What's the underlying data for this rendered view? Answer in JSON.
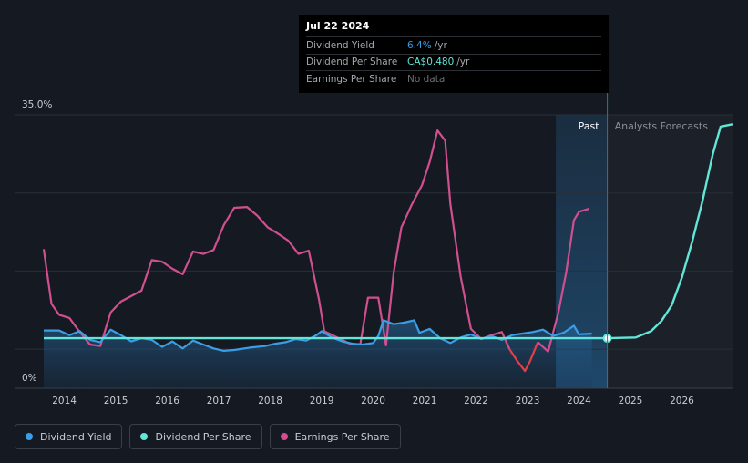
{
  "colors": {
    "dividend_yield": "#3a9ee6",
    "dividend_per_share": "#62e6d8",
    "earnings_per_share": "#d0508f",
    "earnings_negative": "#e0404a",
    "background": "#151a22"
  },
  "tooltip": {
    "date": "Jul 22 2024",
    "rows": [
      {
        "label": "Dividend Yield",
        "value": "6.4%",
        "unit": "/yr"
      },
      {
        "label": "Dividend Per Share",
        "value": "CA$0.480",
        "unit": "/yr"
      },
      {
        "label": "Earnings Per Share",
        "value": "No data",
        "unit": ""
      }
    ]
  },
  "legend": [
    {
      "label": "Dividend Yield",
      "color": "#3a9ee6"
    },
    {
      "label": "Dividend Per Share",
      "color": "#62e6d8"
    },
    {
      "label": "Earnings Per Share",
      "color": "#d0508f"
    }
  ],
  "chart_data": {
    "type": "line",
    "ylim": [
      0,
      35
    ],
    "y_tick_labels": [
      "35.0%",
      "0%"
    ],
    "x_tick_labels": [
      "2014",
      "2015",
      "2016",
      "2017",
      "2018",
      "2019",
      "2020",
      "2021",
      "2022",
      "2023",
      "2024",
      "2025",
      "2026"
    ],
    "xlim": [
      2013.6,
      2027.0
    ],
    "grid": true,
    "regions": {
      "past_label": "Past",
      "forecast_label": "Analysts Forecasts",
      "divider_x": 2024.55
    },
    "series": [
      {
        "name": "Dividend Yield",
        "points": [
          [
            2013.6,
            7.4
          ],
          [
            2013.9,
            7.4
          ],
          [
            2014.1,
            6.8
          ],
          [
            2014.3,
            7.3
          ],
          [
            2014.5,
            6.2
          ],
          [
            2014.7,
            5.9
          ],
          [
            2014.9,
            7.5
          ],
          [
            2015.1,
            6.8
          ],
          [
            2015.3,
            6.0
          ],
          [
            2015.5,
            6.4
          ],
          [
            2015.7,
            6.2
          ],
          [
            2015.9,
            5.3
          ],
          [
            2016.1,
            6.0
          ],
          [
            2016.3,
            5.1
          ],
          [
            2016.5,
            6.1
          ],
          [
            2016.7,
            5.6
          ],
          [
            2016.9,
            5.1
          ],
          [
            2017.1,
            4.8
          ],
          [
            2017.3,
            4.9
          ],
          [
            2017.6,
            5.2
          ],
          [
            2017.9,
            5.4
          ],
          [
            2018.1,
            5.7
          ],
          [
            2018.3,
            5.9
          ],
          [
            2018.5,
            6.3
          ],
          [
            2018.7,
            6.1
          ],
          [
            2018.9,
            6.8
          ],
          [
            2019.0,
            7.3
          ],
          [
            2019.2,
            6.5
          ],
          [
            2019.4,
            6.0
          ],
          [
            2019.6,
            5.7
          ],
          [
            2019.8,
            5.6
          ],
          [
            2020.0,
            5.8
          ],
          [
            2020.1,
            6.7
          ],
          [
            2020.2,
            8.7
          ],
          [
            2020.4,
            8.2
          ],
          [
            2020.6,
            8.4
          ],
          [
            2020.8,
            8.7
          ],
          [
            2020.9,
            7.1
          ],
          [
            2021.1,
            7.6
          ],
          [
            2021.3,
            6.4
          ],
          [
            2021.5,
            5.8
          ],
          [
            2021.7,
            6.5
          ],
          [
            2021.9,
            6.9
          ],
          [
            2022.1,
            6.3
          ],
          [
            2022.3,
            6.7
          ],
          [
            2022.5,
            6.2
          ],
          [
            2022.7,
            6.8
          ],
          [
            2022.9,
            7.0
          ],
          [
            2023.1,
            7.2
          ],
          [
            2023.3,
            7.5
          ],
          [
            2023.5,
            6.7
          ],
          [
            2023.7,
            7.1
          ],
          [
            2023.9,
            8.0
          ],
          [
            2024.0,
            6.9
          ],
          [
            2024.25,
            7.0
          ]
        ]
      },
      {
        "name": "Dividend Per Share",
        "points": [
          [
            2013.6,
            6.4
          ],
          [
            2024.55,
            6.4
          ],
          [
            2025.1,
            6.5
          ],
          [
            2025.4,
            7.3
          ],
          [
            2025.6,
            8.6
          ],
          [
            2025.8,
            10.6
          ],
          [
            2026.0,
            14.2
          ],
          [
            2026.2,
            18.8
          ],
          [
            2026.4,
            24.0
          ],
          [
            2026.6,
            30.0
          ],
          [
            2026.75,
            33.5
          ],
          [
            2026.98,
            33.8
          ]
        ],
        "forecast_from": 2024.55
      },
      {
        "name": "Earnings Per Share",
        "points": [
          [
            2013.6,
            17.8
          ],
          [
            2013.75,
            10.8
          ],
          [
            2013.9,
            9.4
          ],
          [
            2014.1,
            9.0
          ],
          [
            2014.3,
            7.2
          ],
          [
            2014.5,
            5.6
          ],
          [
            2014.7,
            5.4
          ],
          [
            2014.9,
            9.7
          ],
          [
            2015.1,
            11.1
          ],
          [
            2015.3,
            11.8
          ],
          [
            2015.5,
            12.5
          ],
          [
            2015.7,
            16.4
          ],
          [
            2015.9,
            16.2
          ],
          [
            2016.1,
            15.3
          ],
          [
            2016.3,
            14.6
          ],
          [
            2016.5,
            17.5
          ],
          [
            2016.7,
            17.2
          ],
          [
            2016.9,
            17.7
          ],
          [
            2017.1,
            20.9
          ],
          [
            2017.3,
            23.1
          ],
          [
            2017.55,
            23.2
          ],
          [
            2017.75,
            22.1
          ],
          [
            2017.95,
            20.6
          ],
          [
            2018.15,
            19.8
          ],
          [
            2018.35,
            18.9
          ],
          [
            2018.55,
            17.2
          ],
          [
            2018.75,
            17.6
          ],
          [
            2018.95,
            11.3
          ],
          [
            2019.05,
            7.3
          ],
          [
            2019.3,
            6.5
          ],
          [
            2019.55,
            5.7
          ],
          [
            2019.75,
            5.6
          ],
          [
            2019.9,
            11.6
          ],
          [
            2020.1,
            11.6
          ],
          [
            2020.25,
            5.5
          ],
          [
            2020.4,
            14.8
          ],
          [
            2020.55,
            20.6
          ],
          [
            2020.75,
            23.5
          ],
          [
            2020.95,
            26.0
          ],
          [
            2021.1,
            29.0
          ],
          [
            2021.25,
            33.0
          ],
          [
            2021.4,
            31.7
          ],
          [
            2021.5,
            23.6
          ],
          [
            2021.7,
            14.3
          ],
          [
            2021.9,
            7.6
          ],
          [
            2022.1,
            6.3
          ],
          [
            2022.3,
            6.8
          ],
          [
            2022.5,
            7.2
          ],
          [
            2022.65,
            5.0
          ],
          [
            2022.8,
            3.5
          ],
          [
            2022.95,
            2.2
          ],
          [
            2023.05,
            3.5
          ],
          [
            2023.2,
            5.9
          ],
          [
            2023.4,
            4.7
          ],
          [
            2023.6,
            9.7
          ],
          [
            2023.75,
            14.8
          ],
          [
            2023.9,
            21.5
          ],
          [
            2024.0,
            22.6
          ],
          [
            2024.2,
            23.0
          ]
        ]
      }
    ],
    "marker": {
      "x": 2024.55,
      "y": 6.4
    }
  }
}
